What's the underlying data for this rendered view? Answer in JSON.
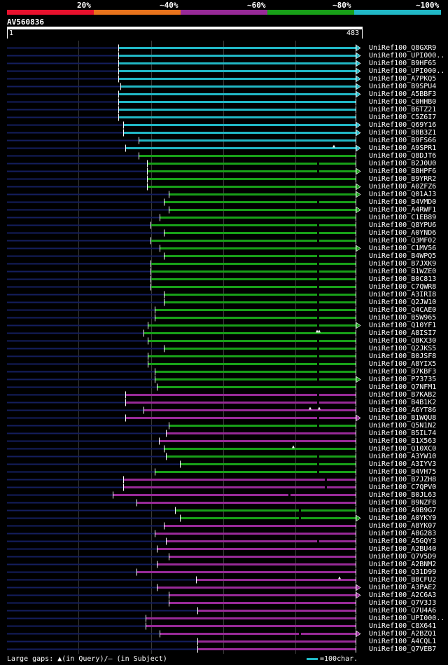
{
  "legend": {
    "labels": [
      "20%",
      "~40%",
      "~60%",
      "~80%",
      "~100%"
    ],
    "colors": [
      "#e8112d",
      "#e8731c",
      "#982a98",
      "#18a018",
      "#21b8c6"
    ]
  },
  "query": {
    "id": "AV560836",
    "start_label": "1",
    "end_label": "483",
    "length": 483
  },
  "footer": {
    "gaps_text": "Large gaps: ▲(in Query)/– (in Subject)",
    "scale_text": "=100char."
  },
  "colors": {
    "background": "#000000",
    "grid": "#3a3a3a",
    "unaligned": "#141e5e",
    "cyan": "#21b8c6",
    "green": "#18a018",
    "purple": "#982a98",
    "white": "#ffffff"
  },
  "chart_data": {
    "type": "alignment",
    "x_range": [
      1,
      483
    ],
    "hits": [
      {
        "name": "UniRef100_Q8GXR9",
        "color": "cyan",
        "start": 155,
        "end": 483,
        "arrow": true,
        "gaps_q": [],
        "gaps_s": []
      },
      {
        "name": "UniRef100_UPI000..",
        "color": "cyan",
        "start": 155,
        "end": 483,
        "arrow": true,
        "gaps_q": [],
        "gaps_s": []
      },
      {
        "name": "UniRef100_B9HF65",
        "color": "cyan",
        "start": 155,
        "end": 483,
        "arrow": true,
        "gaps_q": [],
        "gaps_s": []
      },
      {
        "name": "UniRef100_UPI000..",
        "color": "cyan",
        "start": 155,
        "end": 483,
        "arrow": true,
        "gaps_q": [],
        "gaps_s": []
      },
      {
        "name": "UniRef100_A7PKQ5",
        "color": "cyan",
        "start": 155,
        "end": 483,
        "arrow": true,
        "gaps_q": [],
        "gaps_s": []
      },
      {
        "name": "UniRef100_B9SPU4",
        "color": "cyan",
        "start": 158,
        "end": 483,
        "arrow": true,
        "gaps_q": [],
        "gaps_s": []
      },
      {
        "name": "UniRef100_A5BBF3",
        "color": "cyan",
        "start": 155,
        "end": 483,
        "arrow": true,
        "gaps_q": [],
        "gaps_s": []
      },
      {
        "name": "UniRef100_C0HHB0",
        "color": "cyan",
        "start": 155,
        "end": 483,
        "arrow": false,
        "gaps_q": [],
        "gaps_s": []
      },
      {
        "name": "UniRef100_B6TZ21",
        "color": "cyan",
        "start": 155,
        "end": 483,
        "arrow": false,
        "gaps_q": [],
        "gaps_s": []
      },
      {
        "name": "UniRef100_C5Z6I7",
        "color": "cyan",
        "start": 155,
        "end": 483,
        "arrow": false,
        "gaps_q": [],
        "gaps_s": []
      },
      {
        "name": "UniRef100_Q69Y16",
        "color": "cyan",
        "start": 162,
        "end": 483,
        "arrow": true,
        "gaps_q": [],
        "gaps_s": []
      },
      {
        "name": "UniRef100_B8B3Z1",
        "color": "cyan",
        "start": 162,
        "end": 483,
        "arrow": true,
        "gaps_q": [],
        "gaps_s": []
      },
      {
        "name": "UniRef100_B9FS66",
        "color": "cyan",
        "start": 183,
        "end": 483,
        "arrow": false,
        "gaps_q": [],
        "gaps_s": []
      },
      {
        "name": "UniRef100_A9SPR1",
        "color": "cyan",
        "start": 165,
        "end": 483,
        "arrow": true,
        "gaps_q": [
          453
        ],
        "gaps_s": []
      },
      {
        "name": "UniRef100_Q8DJT6",
        "color": "green",
        "start": 183,
        "end": 483,
        "arrow": false,
        "gaps_q": [],
        "gaps_s": []
      },
      {
        "name": "UniRef100_B2J0U0",
        "color": "green",
        "start": 195,
        "end": 483,
        "arrow": false,
        "gaps_q": [],
        "gaps_s": [
          430
        ]
      },
      {
        "name": "UniRef100_B8HPF6",
        "color": "green",
        "start": 195,
        "end": 483,
        "arrow": true,
        "gaps_q": [],
        "gaps_s": [
          430
        ]
      },
      {
        "name": "UniRef100_B9YRR2",
        "color": "green",
        "start": 195,
        "end": 483,
        "arrow": false,
        "gaps_q": [],
        "gaps_s": []
      },
      {
        "name": "UniRef100_A0ZFZ6",
        "color": "green",
        "start": 195,
        "end": 483,
        "arrow": true,
        "gaps_q": [],
        "gaps_s": []
      },
      {
        "name": "UniRef100_Q01AJ3",
        "color": "green",
        "start": 225,
        "end": 483,
        "arrow": true,
        "gaps_q": [],
        "gaps_s": []
      },
      {
        "name": "UniRef100_B4VMD0",
        "color": "green",
        "start": 218,
        "end": 483,
        "arrow": false,
        "gaps_q": [],
        "gaps_s": [
          430
        ]
      },
      {
        "name": "UniRef100_A4RWF1",
        "color": "green",
        "start": 225,
        "end": 483,
        "arrow": true,
        "gaps_q": [],
        "gaps_s": []
      },
      {
        "name": "UniRef100_C1EB89",
        "color": "green",
        "start": 212,
        "end": 483,
        "arrow": false,
        "gaps_q": [],
        "gaps_s": []
      },
      {
        "name": "UniRef100_Q8YPU6",
        "color": "green",
        "start": 199,
        "end": 483,
        "arrow": false,
        "gaps_q": [],
        "gaps_s": [
          430
        ]
      },
      {
        "name": "UniRef100_A0YND6",
        "color": "green",
        "start": 218,
        "end": 483,
        "arrow": false,
        "gaps_q": [],
        "gaps_s": [
          430
        ]
      },
      {
        "name": "UniRef100_Q3MF02",
        "color": "green",
        "start": 199,
        "end": 483,
        "arrow": false,
        "gaps_q": [],
        "gaps_s": [
          430
        ]
      },
      {
        "name": "UniRef100_C1MV56",
        "color": "green",
        "start": 212,
        "end": 483,
        "arrow": true,
        "gaps_q": [],
        "gaps_s": []
      },
      {
        "name": "UniRef100_B4WPQ5",
        "color": "green",
        "start": 218,
        "end": 483,
        "arrow": false,
        "gaps_q": [],
        "gaps_s": [
          430
        ]
      },
      {
        "name": "UniRef100_B7JXK9",
        "color": "green",
        "start": 199,
        "end": 483,
        "arrow": false,
        "gaps_q": [],
        "gaps_s": [
          430
        ]
      },
      {
        "name": "UniRef100_B1WZE0",
        "color": "green",
        "start": 199,
        "end": 483,
        "arrow": false,
        "gaps_q": [],
        "gaps_s": [
          430
        ]
      },
      {
        "name": "UniRef100_B0C813",
        "color": "green",
        "start": 199,
        "end": 483,
        "arrow": false,
        "gaps_q": [],
        "gaps_s": [
          430
        ]
      },
      {
        "name": "UniRef100_C7QWR8",
        "color": "green",
        "start": 199,
        "end": 483,
        "arrow": false,
        "gaps_q": [],
        "gaps_s": [
          430
        ]
      },
      {
        "name": "UniRef100_A3IRI8",
        "color": "green",
        "start": 218,
        "end": 483,
        "arrow": false,
        "gaps_q": [],
        "gaps_s": [
          430
        ]
      },
      {
        "name": "UniRef100_Q2JW10",
        "color": "green",
        "start": 218,
        "end": 483,
        "arrow": false,
        "gaps_q": [],
        "gaps_s": [
          430
        ]
      },
      {
        "name": "UniRef100_Q4CAE0",
        "color": "green",
        "start": 205,
        "end": 483,
        "arrow": false,
        "gaps_q": [],
        "gaps_s": [
          430
        ]
      },
      {
        "name": "UniRef100_B5W965",
        "color": "green",
        "start": 205,
        "end": 483,
        "arrow": false,
        "gaps_q": [],
        "gaps_s": [
          430
        ]
      },
      {
        "name": "UniRef100_Q10YF1",
        "color": "green",
        "start": 196,
        "end": 483,
        "arrow": true,
        "gaps_q": [],
        "gaps_s": [
          430
        ]
      },
      {
        "name": "UniRef100_A8ISI7",
        "color": "green",
        "start": 190,
        "end": 483,
        "arrow": false,
        "gaps_q": [
          430,
          433
        ],
        "gaps_s": []
      },
      {
        "name": "UniRef100_Q8KX30",
        "color": "green",
        "start": 196,
        "end": 483,
        "arrow": false,
        "gaps_q": [],
        "gaps_s": [
          430
        ]
      },
      {
        "name": "UniRef100_Q2JKS5",
        "color": "green",
        "start": 218,
        "end": 483,
        "arrow": false,
        "gaps_q": [],
        "gaps_s": [
          430
        ]
      },
      {
        "name": "UniRef100_B0JSF8",
        "color": "green",
        "start": 196,
        "end": 483,
        "arrow": false,
        "gaps_q": [],
        "gaps_s": [
          430
        ]
      },
      {
        "name": "UniRef100_A8YIX5",
        "color": "green",
        "start": 196,
        "end": 483,
        "arrow": false,
        "gaps_q": [],
        "gaps_s": [
          430
        ]
      },
      {
        "name": "UniRef100_B7KBF3",
        "color": "green",
        "start": 205,
        "end": 483,
        "arrow": false,
        "gaps_q": [],
        "gaps_s": [
          430
        ]
      },
      {
        "name": "UniRef100_P73735",
        "color": "green",
        "start": 205,
        "end": 483,
        "arrow": true,
        "gaps_q": [],
        "gaps_s": [
          430
        ]
      },
      {
        "name": "UniRef100_Q7NFM1",
        "color": "green",
        "start": 208,
        "end": 483,
        "arrow": false,
        "gaps_q": [],
        "gaps_s": []
      },
      {
        "name": "UniRef100_B7KAB2",
        "color": "purple",
        "start": 165,
        "end": 483,
        "arrow": false,
        "gaps_q": [],
        "gaps_s": [
          430
        ]
      },
      {
        "name": "UniRef100_B4B1K2",
        "color": "purple",
        "start": 165,
        "end": 483,
        "arrow": false,
        "gaps_q": [],
        "gaps_s": [
          430
        ]
      },
      {
        "name": "UniRef100_A6YT86",
        "color": "purple",
        "start": 190,
        "end": 483,
        "arrow": false,
        "gaps_q": [
          420,
          433
        ],
        "gaps_s": []
      },
      {
        "name": "UniRef100_B1WQU8",
        "color": "purple",
        "start": 165,
        "end": 483,
        "arrow": true,
        "gaps_q": [],
        "gaps_s": [
          430
        ]
      },
      {
        "name": "UniRef100_Q5N1N2",
        "color": "green",
        "start": 225,
        "end": 483,
        "arrow": false,
        "gaps_q": [],
        "gaps_s": [
          430
        ]
      },
      {
        "name": "UniRef100_B5IL74",
        "color": "purple",
        "start": 221,
        "end": 483,
        "arrow": false,
        "gaps_q": [],
        "gaps_s": []
      },
      {
        "name": "UniRef100_B1X563",
        "color": "purple",
        "start": 211,
        "end": 483,
        "arrow": false,
        "gaps_q": [],
        "gaps_s": []
      },
      {
        "name": "UniRef100_Q10XC0",
        "color": "green",
        "start": 218,
        "end": 483,
        "arrow": false,
        "gaps_q": [
          397
        ],
        "gaps_s": []
      },
      {
        "name": "UniRef100_A3YW10",
        "color": "green",
        "start": 221,
        "end": 483,
        "arrow": false,
        "gaps_q": [],
        "gaps_s": [
          430
        ]
      },
      {
        "name": "UniRef100_A3IYV3",
        "color": "green",
        "start": 240,
        "end": 483,
        "arrow": false,
        "gaps_q": [],
        "gaps_s": [
          430
        ]
      },
      {
        "name": "UniRef100_B4VH75",
        "color": "green",
        "start": 205,
        "end": 483,
        "arrow": false,
        "gaps_q": [],
        "gaps_s": [
          430
        ]
      },
      {
        "name": "UniRef100_B7JZH8",
        "color": "purple",
        "start": 162,
        "end": 483,
        "arrow": false,
        "gaps_q": [],
        "gaps_s": [
          440
        ]
      },
      {
        "name": "UniRef100_C7QPV0",
        "color": "purple",
        "start": 162,
        "end": 483,
        "arrow": false,
        "gaps_q": [],
        "gaps_s": [
          440
        ]
      },
      {
        "name": "UniRef100_B0JL63",
        "color": "purple",
        "start": 147,
        "end": 483,
        "arrow": false,
        "gaps_q": [],
        "gaps_s": [
          390
        ]
      },
      {
        "name": "UniRef100_B9NZF8",
        "color": "purple",
        "start": 180,
        "end": 483,
        "arrow": false,
        "gaps_q": [],
        "gaps_s": []
      },
      {
        "name": "UniRef100_A9B9G7",
        "color": "green",
        "start": 233,
        "end": 483,
        "arrow": false,
        "gaps_q": [],
        "gaps_s": [
          405
        ]
      },
      {
        "name": "UniRef100_A0YKY9",
        "color": "green",
        "start": 240,
        "end": 483,
        "arrow": true,
        "gaps_q": [],
        "gaps_s": [
          405
        ]
      },
      {
        "name": "UniRef100_A8YK07",
        "color": "purple",
        "start": 218,
        "end": 483,
        "arrow": false,
        "gaps_q": [],
        "gaps_s": []
      },
      {
        "name": "UniRef100_A8G283",
        "color": "purple",
        "start": 205,
        "end": 483,
        "arrow": false,
        "gaps_q": [],
        "gaps_s": []
      },
      {
        "name": "UniRef100_A5GQY3",
        "color": "purple",
        "start": 221,
        "end": 483,
        "arrow": false,
        "gaps_q": [],
        "gaps_s": [
          430
        ]
      },
      {
        "name": "UniRef100_A2BU40",
        "color": "purple",
        "start": 208,
        "end": 483,
        "arrow": false,
        "gaps_q": [],
        "gaps_s": []
      },
      {
        "name": "UniRef100_Q7V5D9",
        "color": "purple",
        "start": 225,
        "end": 483,
        "arrow": false,
        "gaps_q": [],
        "gaps_s": []
      },
      {
        "name": "UniRef100_A2BNM2",
        "color": "purple",
        "start": 208,
        "end": 483,
        "arrow": false,
        "gaps_q": [],
        "gaps_s": []
      },
      {
        "name": "UniRef100_Q31D99",
        "color": "purple",
        "start": 180,
        "end": 483,
        "arrow": false,
        "gaps_q": [],
        "gaps_s": []
      },
      {
        "name": "UniRef100_B8CFU2",
        "color": "purple",
        "start": 262,
        "end": 483,
        "arrow": false,
        "gaps_q": [
          461
        ],
        "gaps_s": []
      },
      {
        "name": "UniRef100_A3PAE2",
        "color": "purple",
        "start": 208,
        "end": 483,
        "arrow": true,
        "gaps_q": [],
        "gaps_s": []
      },
      {
        "name": "UniRef100_A2C6A3",
        "color": "purple",
        "start": 225,
        "end": 483,
        "arrow": true,
        "gaps_q": [],
        "gaps_s": []
      },
      {
        "name": "UniRef100_Q7V3J3",
        "color": "purple",
        "start": 225,
        "end": 483,
        "arrow": false,
        "gaps_q": [],
        "gaps_s": []
      },
      {
        "name": "UniRef100_Q7U4A6",
        "color": "purple",
        "start": 264,
        "end": 483,
        "arrow": false,
        "gaps_q": [],
        "gaps_s": []
      },
      {
        "name": "UniRef100_UPI000..",
        "color": "purple",
        "start": 193,
        "end": 483,
        "arrow": false,
        "gaps_q": [],
        "gaps_s": []
      },
      {
        "name": "UniRef100_C8X641",
        "color": "purple",
        "start": 193,
        "end": 483,
        "arrow": false,
        "gaps_q": [],
        "gaps_s": []
      },
      {
        "name": "UniRef100_A2BZQ1",
        "color": "purple",
        "start": 212,
        "end": 483,
        "arrow": true,
        "gaps_q": [],
        "gaps_s": [
          405
        ]
      },
      {
        "name": "UniRef100_A4CQL1",
        "color": "purple",
        "start": 264,
        "end": 483,
        "arrow": false,
        "gaps_q": [],
        "gaps_s": []
      },
      {
        "name": "UniRef100_Q7VEB7",
        "color": "purple",
        "start": 264,
        "end": 483,
        "arrow": false,
        "gaps_q": [],
        "gaps_s": []
      }
    ]
  }
}
